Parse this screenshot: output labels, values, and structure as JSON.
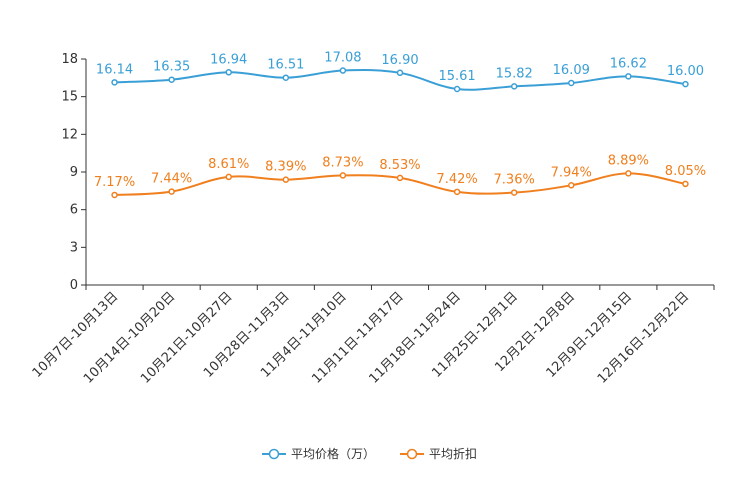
{
  "chart_data": {
    "type": "line",
    "categories": [
      "10月7日-10月13日",
      "10月14日-10月20日",
      "10月21日-10月27日",
      "10月28日-11月3日",
      "11月4日-11月10日",
      "11月11日-11月17日",
      "11月18日-11月24日",
      "11月25日-12月1日",
      "12月2日-12月8日",
      "12月9日-12月15日",
      "12月16日-12月22日"
    ],
    "series": [
      {
        "name": "平均价格（万）",
        "color": "#3a9fd6",
        "values": [
          16.14,
          16.35,
          16.94,
          16.51,
          17.08,
          16.9,
          15.61,
          15.82,
          16.09,
          16.62,
          16.0
        ],
        "labels": [
          "16.14",
          "16.35",
          "16.94",
          "16.51",
          "17.08",
          "16.90",
          "15.61",
          "15.82",
          "16.09",
          "16.62",
          "16.00"
        ]
      },
      {
        "name": "平均折扣",
        "color": "#f07f1e",
        "values": [
          7.17,
          7.44,
          8.61,
          8.39,
          8.73,
          8.53,
          7.42,
          7.36,
          7.94,
          8.89,
          8.05
        ],
        "labels": [
          "7.17%",
          "7.44%",
          "8.61%",
          "8.39%",
          "8.73%",
          "8.53%",
          "7.42%",
          "7.36%",
          "7.94%",
          "8.89%",
          "8.05%"
        ]
      }
    ],
    "yticks": [
      "0",
      "3",
      "6",
      "9",
      "12",
      "15",
      "18"
    ],
    "ylim": [
      0,
      18
    ],
    "title": "",
    "xlabel": "",
    "ylabel": "",
    "grid": false,
    "legend": "bottom-center"
  }
}
